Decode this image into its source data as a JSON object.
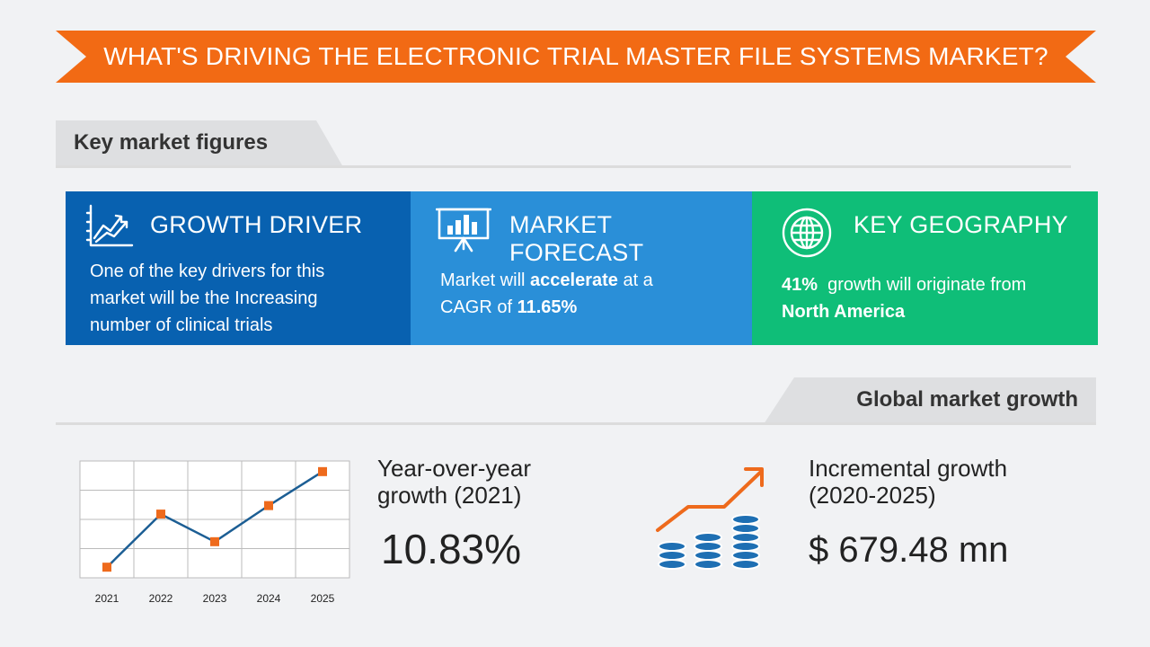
{
  "banner": {
    "title": "WHAT'S DRIVING THE ELECTRONIC TRIAL MASTER FILE SYSTEMS MARKET?",
    "color": "#f26a14"
  },
  "key_figures": {
    "heading": "Key market figures",
    "growth_driver": {
      "title": "GROWTH DRIVER",
      "icon": "growth-chart-icon",
      "text": "One of the key drivers for this market will be the Increasing number of clinical trials",
      "color": "#0861b0"
    },
    "market_forecast": {
      "title": "MARKET FORECAST",
      "icon": "presentation-board-icon",
      "text_pre": "Market will ",
      "text_bold1": "accelerate",
      "text_mid": " at a CAGR of ",
      "text_bold2": "11.65%",
      "color": "#2a8fd8"
    },
    "key_geography": {
      "title": "KEY GEOGRAPHY",
      "icon": "globe-icon",
      "text_bold1": "41%",
      "text_mid": "  growth will originate from ",
      "text_bold2": "North America",
      "color": "#0fbe78"
    }
  },
  "global_growth": {
    "heading": "Global market growth",
    "yoy_label": "Year-over-year growth (2021)",
    "yoy_value": "10.83%",
    "incremental_label": "Incremental growth (2020-2025)",
    "incremental_value": "$ 679.48 mn",
    "incremental_icon": "coin-stacks-growth-icon"
  },
  "chart_data": {
    "type": "line",
    "categories": [
      "2021",
      "2022",
      "2023",
      "2024",
      "2025"
    ],
    "values": [
      0.5,
      3.0,
      1.7,
      3.4,
      5.0
    ],
    "ylim": [
      0,
      5.5
    ],
    "grid": true,
    "line_color": "#1c5e94",
    "marker_color": "#ee6a1c"
  }
}
